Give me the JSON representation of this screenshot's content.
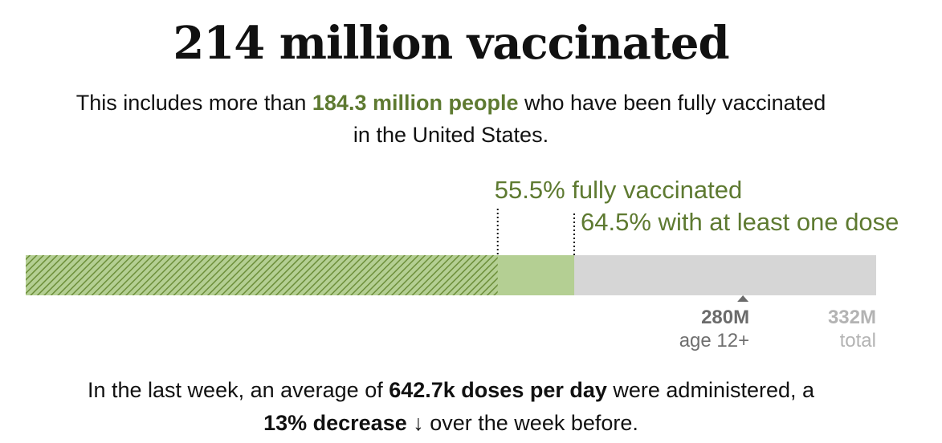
{
  "headline": "214 million vaccinated",
  "subtitle": {
    "before": "This includes more than ",
    "highlight": "184.3 million people",
    "after_line1": " who have been fully vaccinated",
    "line2": "in the United States."
  },
  "colors": {
    "fully_vaccinated": "#6d8f3a",
    "at_least_one_dose": "#b4cf93",
    "remaining": "#d6d6d6",
    "label_green": "#5e7a31",
    "marker_dark": "#6b6b6b",
    "marker_light": "#b3b3b3"
  },
  "chart_data": {
    "type": "bar",
    "orientation": "horizontal",
    "stacked": true,
    "total_population_millions": 332,
    "segments": [
      {
        "name": "fully vaccinated",
        "percent": 55.5,
        "label": "55.5% fully vaccinated",
        "fill": "hatched"
      },
      {
        "name": "with at least one dose",
        "percent": 64.5,
        "label": "64.5% with at least one dose",
        "fill": "solid"
      }
    ],
    "markers": [
      {
        "value_millions": 280,
        "label": "280M",
        "sublabel": "age 12+"
      },
      {
        "value_millions": 332,
        "label": "332M",
        "sublabel": "total"
      }
    ],
    "xlim": [
      0,
      332
    ]
  },
  "footer": {
    "t1": "In the last week, an average of ",
    "b1": "642.7k doses per day",
    "t2": " were administered, a",
    "b2": "13% decrease",
    "arrow": "↓",
    "t3": " over the week before."
  }
}
